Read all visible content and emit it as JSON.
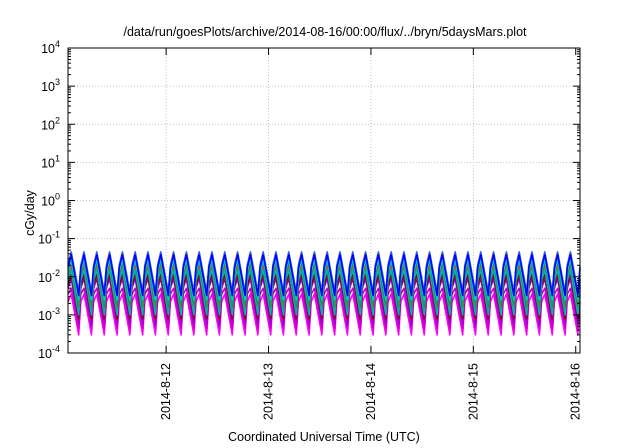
{
  "chart_data": {
    "type": "line",
    "title": "/data/run/goesPlots/archive/2014-08-16/00:00/flux/../bryn/5daysMars.plot",
    "xlabel": "Coordinated Universal Time (UTC)",
    "ylabel": "cGy/day",
    "y_scale": "log",
    "ylim": [
      0.0001,
      10000
    ],
    "y_ticks": [
      {
        "base": "10",
        "exp": "-4"
      },
      {
        "base": "10",
        "exp": "-3"
      },
      {
        "base": "10",
        "exp": "-2"
      },
      {
        "base": "10",
        "exp": "-1"
      },
      {
        "base": "10",
        "exp": "0"
      },
      {
        "base": "10",
        "exp": "1"
      },
      {
        "base": "10",
        "exp": "2"
      },
      {
        "base": "10",
        "exp": "3"
      },
      {
        "base": "10",
        "exp": "4"
      }
    ],
    "xlim": [
      "2014-08-11T01:00",
      "2014-08-16T01:00"
    ],
    "x_ticks": [
      "2014-8-12",
      "2014-8-13",
      "2014-8-14",
      "2014-8-15",
      "2014-8-16"
    ],
    "grid": true,
    "pattern": {
      "period_hours": 3,
      "cycles": 40,
      "sample_x": [
        "2014-08-11T01:00",
        "2014-08-11T01:45",
        "2014-08-11T03:30",
        "2014-08-11T04:00"
      ],
      "note": "each series repeats a sawtooth: rises at sample 1, decays to sample 2, jumps back at sample 3"
    },
    "series": [
      {
        "color": "#ff00ff",
        "y": [
          0.0022,
          0.0035,
          0.0003,
          0.0022
        ]
      },
      {
        "color": "#cc00cc",
        "y": [
          0.0035,
          0.005,
          0.00045,
          0.0035
        ]
      },
      {
        "color": "#9400d3",
        "y": [
          0.005,
          0.009,
          0.0006,
          0.005
        ]
      },
      {
        "color": "#8b0000",
        "y": [
          0.006,
          0.012,
          0.0008,
          0.006
        ]
      },
      {
        "color": "#ff4500",
        "y": [
          0.009,
          0.02,
          0.0011,
          0.009
        ]
      },
      {
        "color": "#00b3b3",
        "y": [
          0.008,
          0.015,
          0.001,
          0.008
        ]
      },
      {
        "color": "#2e8b57",
        "y": [
          0.011,
          0.025,
          0.0016,
          0.011
        ]
      },
      {
        "color": "#00ced1",
        "y": [
          0.014,
          0.03,
          0.0025,
          0.014
        ]
      },
      {
        "color": "#4169e1",
        "y": [
          0.02,
          0.045,
          0.004,
          0.02
        ]
      },
      {
        "color": "#0000ff",
        "y": [
          0.017,
          0.038,
          0.0032,
          0.017
        ]
      }
    ]
  }
}
